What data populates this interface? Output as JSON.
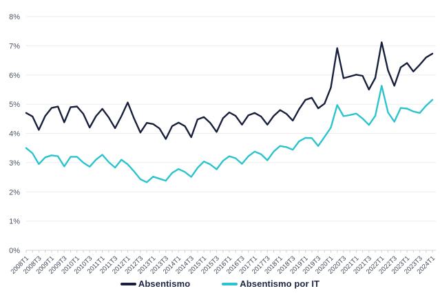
{
  "chart_data": {
    "type": "line",
    "title": "",
    "xlabel": "",
    "ylabel": "",
    "ylim": [
      0,
      8
    ],
    "y_tick_labels": [
      "0%",
      "1%",
      "2%",
      "3%",
      "4%",
      "5%",
      "6%",
      "7%",
      "8%"
    ],
    "grid": "horizontal",
    "legend_position": "bottom-center",
    "x_tick_labels_shown": [
      "2008T1",
      "2008T3",
      "2009T1",
      "2009T3",
      "2010T1",
      "2010T3",
      "2011T1",
      "2011T3",
      "2012T1",
      "2012T3",
      "2013T1",
      "2013T3",
      "2014T1",
      "2014T3",
      "2015T1",
      "2015T3",
      "2016T1",
      "2016T3",
      "2017T1",
      "2017T3",
      "2018T1",
      "2018T3",
      "2019T1",
      "2019T3",
      "2020T1",
      "2020T3",
      "2021T1",
      "2021T3",
      "2022T1",
      "2022T3",
      "2023T1",
      "2023T3",
      "2024T1"
    ],
    "categories": [
      "2008T1",
      "2008T2",
      "2008T3",
      "2008T4",
      "2009T1",
      "2009T2",
      "2009T3",
      "2009T4",
      "2010T1",
      "2010T2",
      "2010T3",
      "2010T4",
      "2011T1",
      "2011T2",
      "2011T3",
      "2011T4",
      "2012T1",
      "2012T2",
      "2012T3",
      "2012T4",
      "2013T1",
      "2013T2",
      "2013T3",
      "2013T4",
      "2014T1",
      "2014T2",
      "2014T3",
      "2014T4",
      "2015T1",
      "2015T2",
      "2015T3",
      "2015T4",
      "2016T1",
      "2016T2",
      "2016T3",
      "2016T4",
      "2017T1",
      "2017T2",
      "2017T3",
      "2017T4",
      "2018T1",
      "2018T2",
      "2018T3",
      "2018T4",
      "2019T1",
      "2019T2",
      "2019T3",
      "2019T4",
      "2020T1",
      "2020T2",
      "2020T3",
      "2020T4",
      "2021T1",
      "2021T2",
      "2021T3",
      "2021T4",
      "2022T1",
      "2022T2",
      "2022T3",
      "2022T4",
      "2023T1",
      "2023T2",
      "2023T3",
      "2023T4",
      "2024T1"
    ],
    "series": [
      {
        "name": "Absentismo",
        "color": "#171f3a",
        "values": [
          4.7,
          4.58,
          4.12,
          4.6,
          4.87,
          4.92,
          4.38,
          4.9,
          4.92,
          4.67,
          4.2,
          4.59,
          4.84,
          4.55,
          4.18,
          4.59,
          5.06,
          4.51,
          4.03,
          4.36,
          4.32,
          4.17,
          3.81,
          4.25,
          4.37,
          4.25,
          3.87,
          4.48,
          4.56,
          4.36,
          4.05,
          4.52,
          4.72,
          4.6,
          4.3,
          4.62,
          4.7,
          4.58,
          4.3,
          4.6,
          4.8,
          4.67,
          4.44,
          4.83,
          5.15,
          5.22,
          4.86,
          5.02,
          5.57,
          6.92,
          5.89,
          5.95,
          6.01,
          5.97,
          5.5,
          5.9,
          7.12,
          6.16,
          5.63,
          6.26,
          6.41,
          6.12,
          6.35,
          6.6,
          6.73
        ]
      },
      {
        "name": "Absentismo por IT",
        "color": "#2bc3ce",
        "values": [
          3.5,
          3.32,
          2.95,
          3.18,
          3.25,
          3.22,
          2.87,
          3.2,
          3.2,
          3.0,
          2.86,
          3.1,
          3.27,
          3.02,
          2.83,
          3.1,
          2.94,
          2.7,
          2.43,
          2.33,
          2.52,
          2.45,
          2.38,
          2.65,
          2.78,
          2.68,
          2.51,
          2.82,
          3.04,
          2.94,
          2.77,
          3.06,
          3.22,
          3.15,
          2.96,
          3.22,
          3.38,
          3.29,
          3.08,
          3.38,
          3.57,
          3.53,
          3.44,
          3.73,
          3.85,
          3.84,
          3.57,
          3.88,
          4.2,
          4.97,
          4.59,
          4.63,
          4.68,
          4.51,
          4.29,
          4.6,
          5.63,
          4.72,
          4.4,
          4.87,
          4.85,
          4.75,
          4.7,
          4.95,
          5.15
        ]
      }
    ]
  },
  "legend": {
    "items": [
      {
        "label": "Absentismo",
        "color": "#171f3a"
      },
      {
        "label": "Absentismo por IT",
        "color": "#2bc3ce"
      }
    ]
  },
  "style_colors": {
    "gridline": "#ebebee",
    "axis_line": "#d4d4da",
    "tick_mark": "#cfcfd6",
    "y_tick_text": "#4a5266",
    "x_tick_text": "#3f4859"
  }
}
